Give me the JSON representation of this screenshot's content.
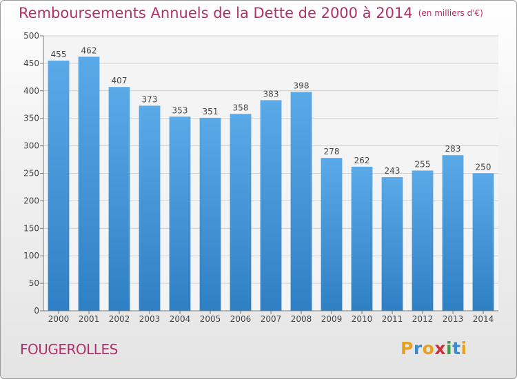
{
  "title": "Remboursements Annuels de la Dette de 2000 à 2014",
  "unit_note": "(en milliers d'€)",
  "commune": "FOUGEROLLES",
  "logo": {
    "text": "Proxiti",
    "letters": [
      {
        "ch": "P",
        "color": "#e8a020"
      },
      {
        "ch": "r",
        "color": "#3a8ad0"
      },
      {
        "ch": "o",
        "color": "#e8a020"
      },
      {
        "ch": "x",
        "color": "#d0303a"
      },
      {
        "ch": "i",
        "color": "#3aa040"
      },
      {
        "ch": "t",
        "color": "#3a8ad0"
      },
      {
        "ch": "i",
        "color": "#e8a020"
      }
    ]
  },
  "colors": {
    "title": "#b0306a",
    "bar_top": "#5aaae8",
    "bar_bottom": "#2f7fc4",
    "grid": "#cfcfcf"
  },
  "chart_data": {
    "type": "bar",
    "title": "Remboursements Annuels de la Dette de 2000 à 2014",
    "xlabel": "",
    "ylabel": "",
    "categories": [
      "2000",
      "2001",
      "2002",
      "2003",
      "2004",
      "2005",
      "2006",
      "2007",
      "2008",
      "2009",
      "2010",
      "2011",
      "2012",
      "2013",
      "2014"
    ],
    "values": [
      455,
      462,
      407,
      373,
      353,
      351,
      358,
      383,
      398,
      278,
      262,
      243,
      255,
      283,
      250
    ],
    "ylim": [
      0,
      500
    ],
    "yticks": [
      0,
      50,
      100,
      150,
      200,
      250,
      300,
      350,
      400,
      450,
      500
    ],
    "grid": true,
    "data_labels": true
  }
}
